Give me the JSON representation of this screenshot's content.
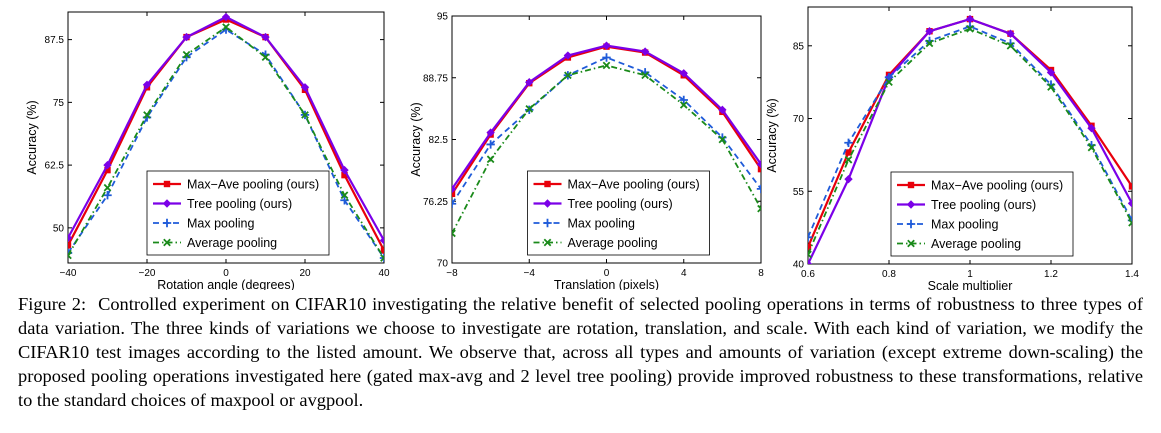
{
  "chart_data": [
    {
      "type": "line",
      "xlabel": "Rotation angle (degrees)",
      "ylabel": "Accuracy (%)",
      "xlim": [
        -40,
        40
      ],
      "ylim": [
        43,
        93
      ],
      "xticks": [
        -40,
        -20,
        0,
        20,
        40
      ],
      "yticks": [
        50,
        62.5,
        75,
        87.5
      ],
      "xtick_labels": [
        "−40",
        "−20",
        "0",
        "20",
        "40"
      ],
      "ytick_labels": [
        "50",
        "62.5",
        "75",
        "87.5"
      ],
      "x": [
        -40,
        -30,
        -20,
        -10,
        0,
        10,
        20,
        30,
        40
      ],
      "series": [
        {
          "name": "Max−Ave pooling (ours)",
          "values": [
            46.5,
            61.5,
            78.0,
            88.0,
            91.5,
            88.0,
            77.5,
            60.5,
            45.5
          ]
        },
        {
          "name": "Tree pooling (ours)",
          "values": [
            48.0,
            62.5,
            78.5,
            88.0,
            92.0,
            88.0,
            78.0,
            61.5,
            47.5
          ]
        },
        {
          "name": "Max pooling",
          "values": [
            45.0,
            56.5,
            72.0,
            84.0,
            89.5,
            84.5,
            72.5,
            55.5,
            44.0
          ]
        },
        {
          "name": "Average pooling",
          "values": [
            44.5,
            58.0,
            72.5,
            84.5,
            90.0,
            84.0,
            72.5,
            56.5,
            44.0
          ]
        }
      ],
      "legend_position": "bottom-center",
      "grid": false
    },
    {
      "type": "line",
      "xlabel": "Translation (pixels)",
      "ylabel": "Accuracy (%)",
      "xlim": [
        -8,
        8
      ],
      "ylim": [
        70,
        95
      ],
      "xticks": [
        -8,
        -4,
        0,
        4,
        8
      ],
      "yticks": [
        70,
        76.25,
        82.5,
        88.75,
        95
      ],
      "xtick_labels": [
        "−8",
        "−4",
        "0",
        "4",
        "8"
      ],
      "ytick_labels": [
        "70",
        "76.25",
        "82.5",
        "88.75",
        "95"
      ],
      "x": [
        -8,
        -6,
        -4,
        -2,
        0,
        2,
        4,
        6,
        8
      ],
      "series": [
        {
          "name": "Max−Ave pooling (ours)",
          "values": [
            77.0,
            83.0,
            88.2,
            90.8,
            91.9,
            91.3,
            89.0,
            85.3,
            79.5
          ]
        },
        {
          "name": "Tree pooling (ours)",
          "values": [
            77.5,
            83.2,
            88.3,
            91.0,
            92.0,
            91.4,
            89.2,
            85.5,
            80.0
          ]
        },
        {
          "name": "Max pooling",
          "values": [
            76.0,
            82.0,
            85.5,
            89.0,
            90.8,
            89.3,
            86.5,
            82.7,
            77.5
          ]
        },
        {
          "name": "Average pooling",
          "values": [
            73.0,
            80.5,
            85.6,
            89.0,
            90.0,
            89.0,
            86.0,
            82.5,
            75.5
          ]
        }
      ],
      "legend_position": "bottom-center",
      "grid": false
    },
    {
      "type": "line",
      "xlabel": "Scale multiplier",
      "ylabel": "Accuracy (%)",
      "xlim": [
        0.6,
        1.4
      ],
      "ylim": [
        40,
        93
      ],
      "xticks": [
        0.6,
        0.8,
        1.0,
        1.2,
        1.4
      ],
      "yticks": [
        40,
        55,
        70,
        85
      ],
      "xtick_labels": [
        "0.6",
        "0.8",
        "1",
        "1.2",
        "1.4"
      ],
      "ytick_labels": [
        "40",
        "55",
        "70",
        "85"
      ],
      "x": [
        0.6,
        0.7,
        0.8,
        0.9,
        1.0,
        1.1,
        1.2,
        1.3,
        1.4
      ],
      "series": [
        {
          "name": "Max−Ave pooling (ours)",
          "values": [
            43.5,
            63.0,
            79.0,
            88.0,
            90.5,
            87.5,
            80.0,
            68.5,
            56.0
          ]
        },
        {
          "name": "Tree pooling (ours)",
          "values": [
            40.0,
            57.5,
            78.5,
            88.0,
            90.5,
            87.5,
            79.5,
            68.0,
            52.5
          ]
        },
        {
          "name": "Max pooling",
          "values": [
            45.5,
            65.0,
            78.5,
            86.0,
            89.0,
            85.5,
            77.0,
            64.5,
            49.0
          ]
        },
        {
          "name": "Average pooling",
          "values": [
            42.0,
            61.5,
            77.5,
            85.5,
            88.5,
            85.0,
            76.5,
            64.0,
            48.5
          ]
        }
      ],
      "legend_position": "bottom-center",
      "grid": false
    }
  ],
  "series_colors": [
    "#e8000b",
    "#7b00e8",
    "#1f5bd9",
    "#1a8a1a"
  ],
  "caption": {
    "label": "Figure 2:",
    "text": "Controlled experiment on CIFAR10 investigating the relative benefit of selected pooling operations in terms of robustness to three types of data variation. The three kinds of variations we choose to investigate are rotation, translation, and scale. With each kind of variation, we modify the CIFAR10 test images according to the listed amount. We observe that, across all types and amounts of variation (except extreme down-scaling) the proposed pooling operations investigated here (gated max-avg and 2 level tree pooling) provide improved robustness to these transformations, relative to the standard choices of maxpool or avgpool."
  }
}
